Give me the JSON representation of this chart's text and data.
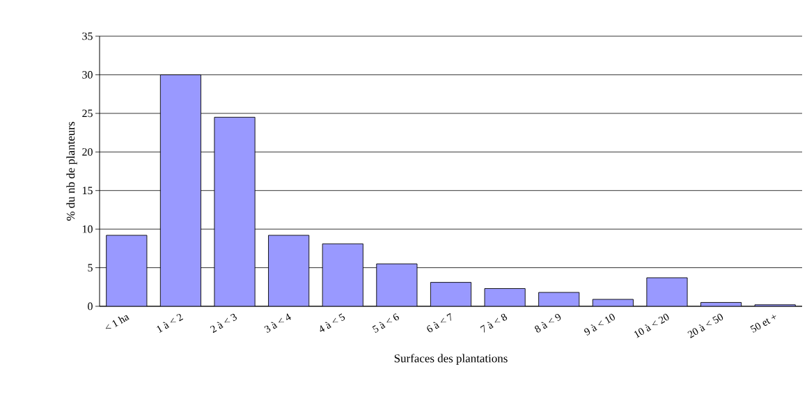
{
  "chart_data": {
    "type": "bar",
    "xlabel": "Surfaces des plantations",
    "ylabel": "% du nb de planteurs",
    "categories": [
      "< 1 ha",
      "1 à < 2",
      "2 à < 3",
      "3 à < 4",
      "4 à < 5",
      "5 à < 6",
      "6 à < 7",
      "7 à < 8",
      "8 à < 9",
      "9 à < 10",
      "10 à < 20",
      "20 à < 50",
      "50 et +"
    ],
    "values": [
      9.2,
      30,
      24.5,
      9.2,
      8.1,
      5.5,
      3.1,
      2.3,
      1.8,
      0.9,
      3.7,
      0.5,
      0.2
    ],
    "color": "#9999ff",
    "ylim": [
      0,
      35
    ],
    "yticks": [
      0,
      5,
      10,
      15,
      20,
      25,
      30,
      35
    ],
    "grid": "y"
  }
}
